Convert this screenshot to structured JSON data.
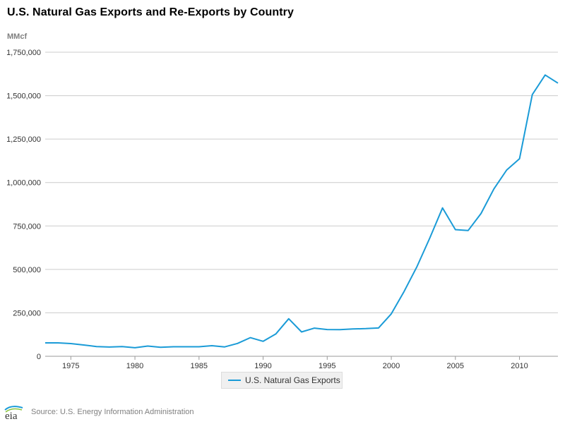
{
  "title": "U.S. Natural Gas Exports and Re-Exports by Country",
  "unit_label": "MMcf",
  "source": "Source: U.S. Energy Information Administration",
  "logo_text": "eia",
  "colors": {
    "series": "#1a9bd7",
    "grid": "#cccccc",
    "axis": "#999999"
  },
  "chart_data": {
    "type": "line",
    "title": "U.S. Natural Gas Exports and Re-Exports by Country",
    "xlabel": "",
    "ylabel": "MMcf",
    "xlim": [
      1973,
      2013
    ],
    "ylim": [
      0,
      1750000
    ],
    "grid": true,
    "legend_placement": "bottom-center",
    "x_ticks": [
      1975,
      1980,
      1985,
      1990,
      1995,
      2000,
      2005,
      2010
    ],
    "x_tick_labels": [
      "1975",
      "1980",
      "1985",
      "1990",
      "1995",
      "2000",
      "2005",
      "2010"
    ],
    "y_ticks": [
      0,
      250000,
      500000,
      750000,
      1000000,
      1250000,
      1500000,
      1750000
    ],
    "y_tick_labels": [
      "0",
      "250,000",
      "500,000",
      "750,000",
      "1,000,000",
      "1,250,000",
      "1,500,000",
      "1,750,000"
    ],
    "series": [
      {
        "name": "U.S. Natural Gas Exports",
        "x": [
          1973,
          1974,
          1975,
          1976,
          1977,
          1978,
          1979,
          1980,
          1981,
          1982,
          1983,
          1984,
          1985,
          1986,
          1987,
          1988,
          1989,
          1990,
          1991,
          1992,
          1993,
          1994,
          1995,
          1996,
          1997,
          1998,
          1999,
          2000,
          2001,
          2002,
          2003,
          2004,
          2005,
          2006,
          2007,
          2008,
          2009,
          2010,
          2011,
          2012,
          2013
        ],
        "values": [
          77000,
          77000,
          73000,
          65000,
          56000,
          53000,
          56000,
          49000,
          59000,
          52000,
          55000,
          55000,
          55000,
          61000,
          54000,
          74000,
          107000,
          86000,
          129000,
          216000,
          140000,
          162000,
          154000,
          153000,
          157000,
          159000,
          163000,
          244000,
          373000,
          516000,
          680000,
          854000,
          729000,
          724000,
          822000,
          963000,
          1072000,
          1137000,
          1506000,
          1619000,
          1572000
        ]
      }
    ]
  }
}
